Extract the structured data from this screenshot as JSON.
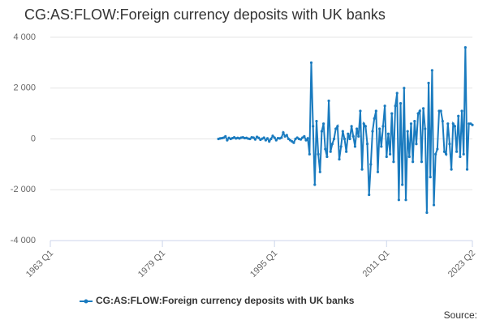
{
  "chart_data": {
    "type": "line",
    "title": "CG:AS:FLOW:Foreign currency deposits with UK banks",
    "source": "Source:",
    "x": [
      "1987 Q1",
      "1987 Q2",
      "1987 Q3",
      "1987 Q4",
      "1988 Q1",
      "1988 Q2",
      "1988 Q3",
      "1988 Q4",
      "1989 Q1",
      "1989 Q2",
      "1989 Q3",
      "1989 Q4",
      "1990 Q1",
      "1990 Q2",
      "1990 Q3",
      "1990 Q4",
      "1991 Q1",
      "1991 Q2",
      "1991 Q3",
      "1991 Q4",
      "1992 Q1",
      "1992 Q2",
      "1992 Q3",
      "1992 Q4",
      "1993 Q1",
      "1993 Q2",
      "1993 Q3",
      "1993 Q4",
      "1994 Q1",
      "1994 Q2",
      "1994 Q3",
      "1994 Q4",
      "1995 Q1",
      "1995 Q2",
      "1995 Q3",
      "1995 Q4",
      "1996 Q1",
      "1996 Q2",
      "1996 Q3",
      "1996 Q4",
      "1997 Q1",
      "1997 Q2",
      "1997 Q3",
      "1997 Q4",
      "1998 Q1",
      "1998 Q2",
      "1998 Q3",
      "1998 Q4",
      "1999 Q1",
      "1999 Q2",
      "1999 Q3",
      "1999 Q4",
      "2000 Q1",
      "2000 Q2",
      "2000 Q3",
      "2000 Q4",
      "2001 Q1",
      "2001 Q2",
      "2001 Q3",
      "2001 Q4",
      "2002 Q1",
      "2002 Q2",
      "2002 Q3",
      "2002 Q4",
      "2003 Q1",
      "2003 Q2",
      "2003 Q3",
      "2003 Q4",
      "2004 Q1",
      "2004 Q2",
      "2004 Q3",
      "2004 Q4",
      "2005 Q1",
      "2005 Q2",
      "2005 Q3",
      "2005 Q4",
      "2006 Q1",
      "2006 Q2",
      "2006 Q3",
      "2006 Q4",
      "2007 Q1",
      "2007 Q2",
      "2007 Q3",
      "2007 Q4",
      "2008 Q1",
      "2008 Q2",
      "2008 Q3",
      "2008 Q4",
      "2009 Q1",
      "2009 Q2",
      "2009 Q3",
      "2009 Q4",
      "2010 Q1",
      "2010 Q2",
      "2010 Q3",
      "2010 Q4",
      "2011 Q1",
      "2011 Q2",
      "2011 Q3",
      "2011 Q4",
      "2012 Q1",
      "2012 Q2",
      "2012 Q3",
      "2012 Q4",
      "2013 Q1",
      "2013 Q2",
      "2013 Q3",
      "2013 Q4",
      "2014 Q1",
      "2014 Q2",
      "2014 Q3",
      "2014 Q4",
      "2015 Q1",
      "2015 Q2",
      "2015 Q3",
      "2015 Q4",
      "2016 Q1",
      "2016 Q2",
      "2016 Q3",
      "2016 Q4",
      "2017 Q1",
      "2017 Q2",
      "2017 Q3",
      "2017 Q4",
      "2018 Q1",
      "2018 Q2",
      "2018 Q3",
      "2018 Q4",
      "2019 Q1",
      "2019 Q2",
      "2019 Q3",
      "2019 Q4",
      "2020 Q1",
      "2020 Q2",
      "2020 Q3",
      "2020 Q4",
      "2021 Q1",
      "2021 Q2",
      "2021 Q3",
      "2021 Q4",
      "2022 Q1",
      "2022 Q2",
      "2022 Q3",
      "2022 Q4",
      "2023 Q1",
      "2023 Q2"
    ],
    "series": [
      {
        "name": "CG:AS:FLOW:Foreign currency deposits with UK banks",
        "color": "#1a7bbf",
        "values": [
          0,
          20,
          30,
          50,
          100,
          -50,
          40,
          0,
          30,
          60,
          20,
          40,
          20,
          50,
          60,
          30,
          40,
          10,
          0,
          60,
          50,
          -20,
          80,
          40,
          -30,
          10,
          50,
          -50,
          20,
          -100,
          0,
          120,
          50,
          -50,
          30,
          20,
          50,
          250,
          100,
          150,
          0,
          -50,
          -100,
          -150,
          0,
          50,
          0,
          -20,
          50,
          100,
          -50,
          20,
          -600,
          3000,
          500,
          -1800,
          700,
          -600,
          -1300,
          300,
          600,
          -400,
          -700,
          1500,
          -500,
          -200,
          0,
          400,
          500,
          -800,
          -300,
          300,
          0,
          -500,
          200,
          0,
          500,
          100,
          -300,
          400,
          100,
          1100,
          -1200,
          600,
          500,
          -200,
          -2200,
          -1000,
          300,
          800,
          1100,
          -1300,
          400,
          -300,
          500,
          1300,
          -700,
          200,
          -600,
          1000,
          -900,
          1300,
          1800,
          -2400,
          1400,
          -1800,
          2000,
          -2400,
          300,
          -700,
          600,
          -900,
          700,
          -200,
          1000,
          1100,
          -900,
          1200,
          400,
          -2900,
          2200,
          -1500,
          2700,
          -2600,
          -600,
          -400,
          1100,
          1100,
          700,
          -500,
          -600,
          600,
          -200,
          -1200,
          600,
          500,
          -500,
          900,
          -700,
          1100,
          -600,
          3600,
          -1200,
          600,
          600,
          550
        ]
      }
    ],
    "xlim": [
      "1963 Q1",
      "2023 Q2"
    ],
    "xticks": [
      "1963 Q1",
      "1979 Q1",
      "1995 Q1",
      "2011 Q1",
      "2023 Q2"
    ],
    "ylim": [
      -4000,
      4000
    ],
    "yticks": [
      {
        "value": -4000,
        "label": "-4 000"
      },
      {
        "value": -2000,
        "label": "-2 000"
      },
      0,
      {
        "value": 2000,
        "label": "2 000"
      },
      {
        "value": 4000,
        "label": "4 000"
      }
    ],
    "grid": true
  }
}
